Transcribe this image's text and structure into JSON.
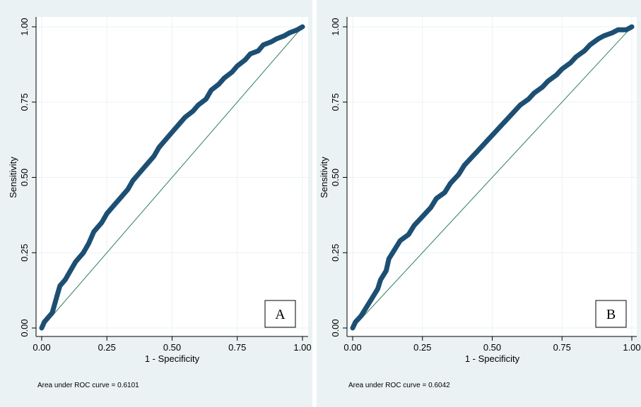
{
  "chart_data": [
    {
      "type": "line",
      "panel_label": "A",
      "xlabel": "1 - Specificity",
      "ylabel": "Sensitivity",
      "xlim": [
        0,
        1
      ],
      "ylim": [
        0,
        1
      ],
      "xticks": [
        "0.00",
        "0.25",
        "0.50",
        "0.75",
        "1.00"
      ],
      "yticks": [
        "0.00",
        "0.25",
        "0.50",
        "0.75",
        "1.00"
      ],
      "grid": true,
      "note": "Area under ROC curve = 0.6101",
      "colors": {
        "curve": "#1d4f73",
        "reference": "#2e7d5c",
        "background": "#eaf2f3"
      },
      "series": [
        {
          "x": [
            0.0,
            0.01,
            0.02,
            0.03,
            0.04,
            0.05,
            0.06,
            0.07,
            0.09,
            0.11,
            0.13,
            0.16,
            0.18,
            0.2,
            0.23,
            0.25,
            0.28,
            0.3,
            0.33,
            0.35,
            0.38,
            0.4,
            0.43,
            0.45,
            0.48,
            0.5,
            0.53,
            0.55,
            0.58,
            0.6,
            0.63,
            0.65,
            0.68,
            0.7,
            0.73,
            0.75,
            0.78,
            0.8,
            0.83,
            0.85,
            0.88,
            0.9,
            0.93,
            0.95,
            0.98,
            1.0
          ],
          "y": [
            0.0,
            0.02,
            0.03,
            0.04,
            0.05,
            0.08,
            0.11,
            0.14,
            0.16,
            0.19,
            0.22,
            0.25,
            0.28,
            0.32,
            0.35,
            0.38,
            0.41,
            0.43,
            0.46,
            0.49,
            0.52,
            0.54,
            0.57,
            0.6,
            0.63,
            0.65,
            0.68,
            0.7,
            0.72,
            0.74,
            0.76,
            0.79,
            0.81,
            0.83,
            0.85,
            0.87,
            0.89,
            0.91,
            0.92,
            0.94,
            0.95,
            0.96,
            0.97,
            0.98,
            0.99,
            1.0
          ]
        },
        {
          "x": [
            0,
            1
          ],
          "y": [
            0,
            1
          ]
        }
      ]
    },
    {
      "type": "line",
      "panel_label": "B",
      "xlabel": "1 - Specificity",
      "ylabel": "Sensitivity",
      "xlim": [
        0,
        1
      ],
      "ylim": [
        0,
        1
      ],
      "xticks": [
        "0.00",
        "0.25",
        "0.50",
        "0.75",
        "1.00"
      ],
      "yticks": [
        "0.00",
        "0.25",
        "0.50",
        "0.75",
        "1.00"
      ],
      "grid": true,
      "note": "Area under ROC curve = 0.6042",
      "colors": {
        "curve": "#1d4f73",
        "reference": "#2e7d5c",
        "background": "#eaf2f3"
      },
      "series": [
        {
          "x": [
            0.0,
            0.01,
            0.03,
            0.05,
            0.07,
            0.09,
            0.1,
            0.12,
            0.13,
            0.15,
            0.17,
            0.2,
            0.22,
            0.25,
            0.28,
            0.3,
            0.33,
            0.35,
            0.38,
            0.4,
            0.43,
            0.45,
            0.48,
            0.5,
            0.53,
            0.55,
            0.58,
            0.6,
            0.63,
            0.65,
            0.68,
            0.7,
            0.73,
            0.75,
            0.78,
            0.8,
            0.83,
            0.85,
            0.88,
            0.9,
            0.93,
            0.95,
            0.98,
            1.0
          ],
          "y": [
            0.0,
            0.02,
            0.04,
            0.07,
            0.1,
            0.13,
            0.16,
            0.19,
            0.23,
            0.26,
            0.29,
            0.31,
            0.34,
            0.37,
            0.4,
            0.43,
            0.45,
            0.48,
            0.51,
            0.54,
            0.57,
            0.59,
            0.62,
            0.64,
            0.67,
            0.69,
            0.72,
            0.74,
            0.76,
            0.78,
            0.8,
            0.82,
            0.84,
            0.86,
            0.88,
            0.9,
            0.92,
            0.94,
            0.96,
            0.97,
            0.98,
            0.99,
            0.99,
            1.0
          ]
        },
        {
          "x": [
            0,
            1
          ],
          "y": [
            0,
            1
          ]
        }
      ]
    }
  ]
}
